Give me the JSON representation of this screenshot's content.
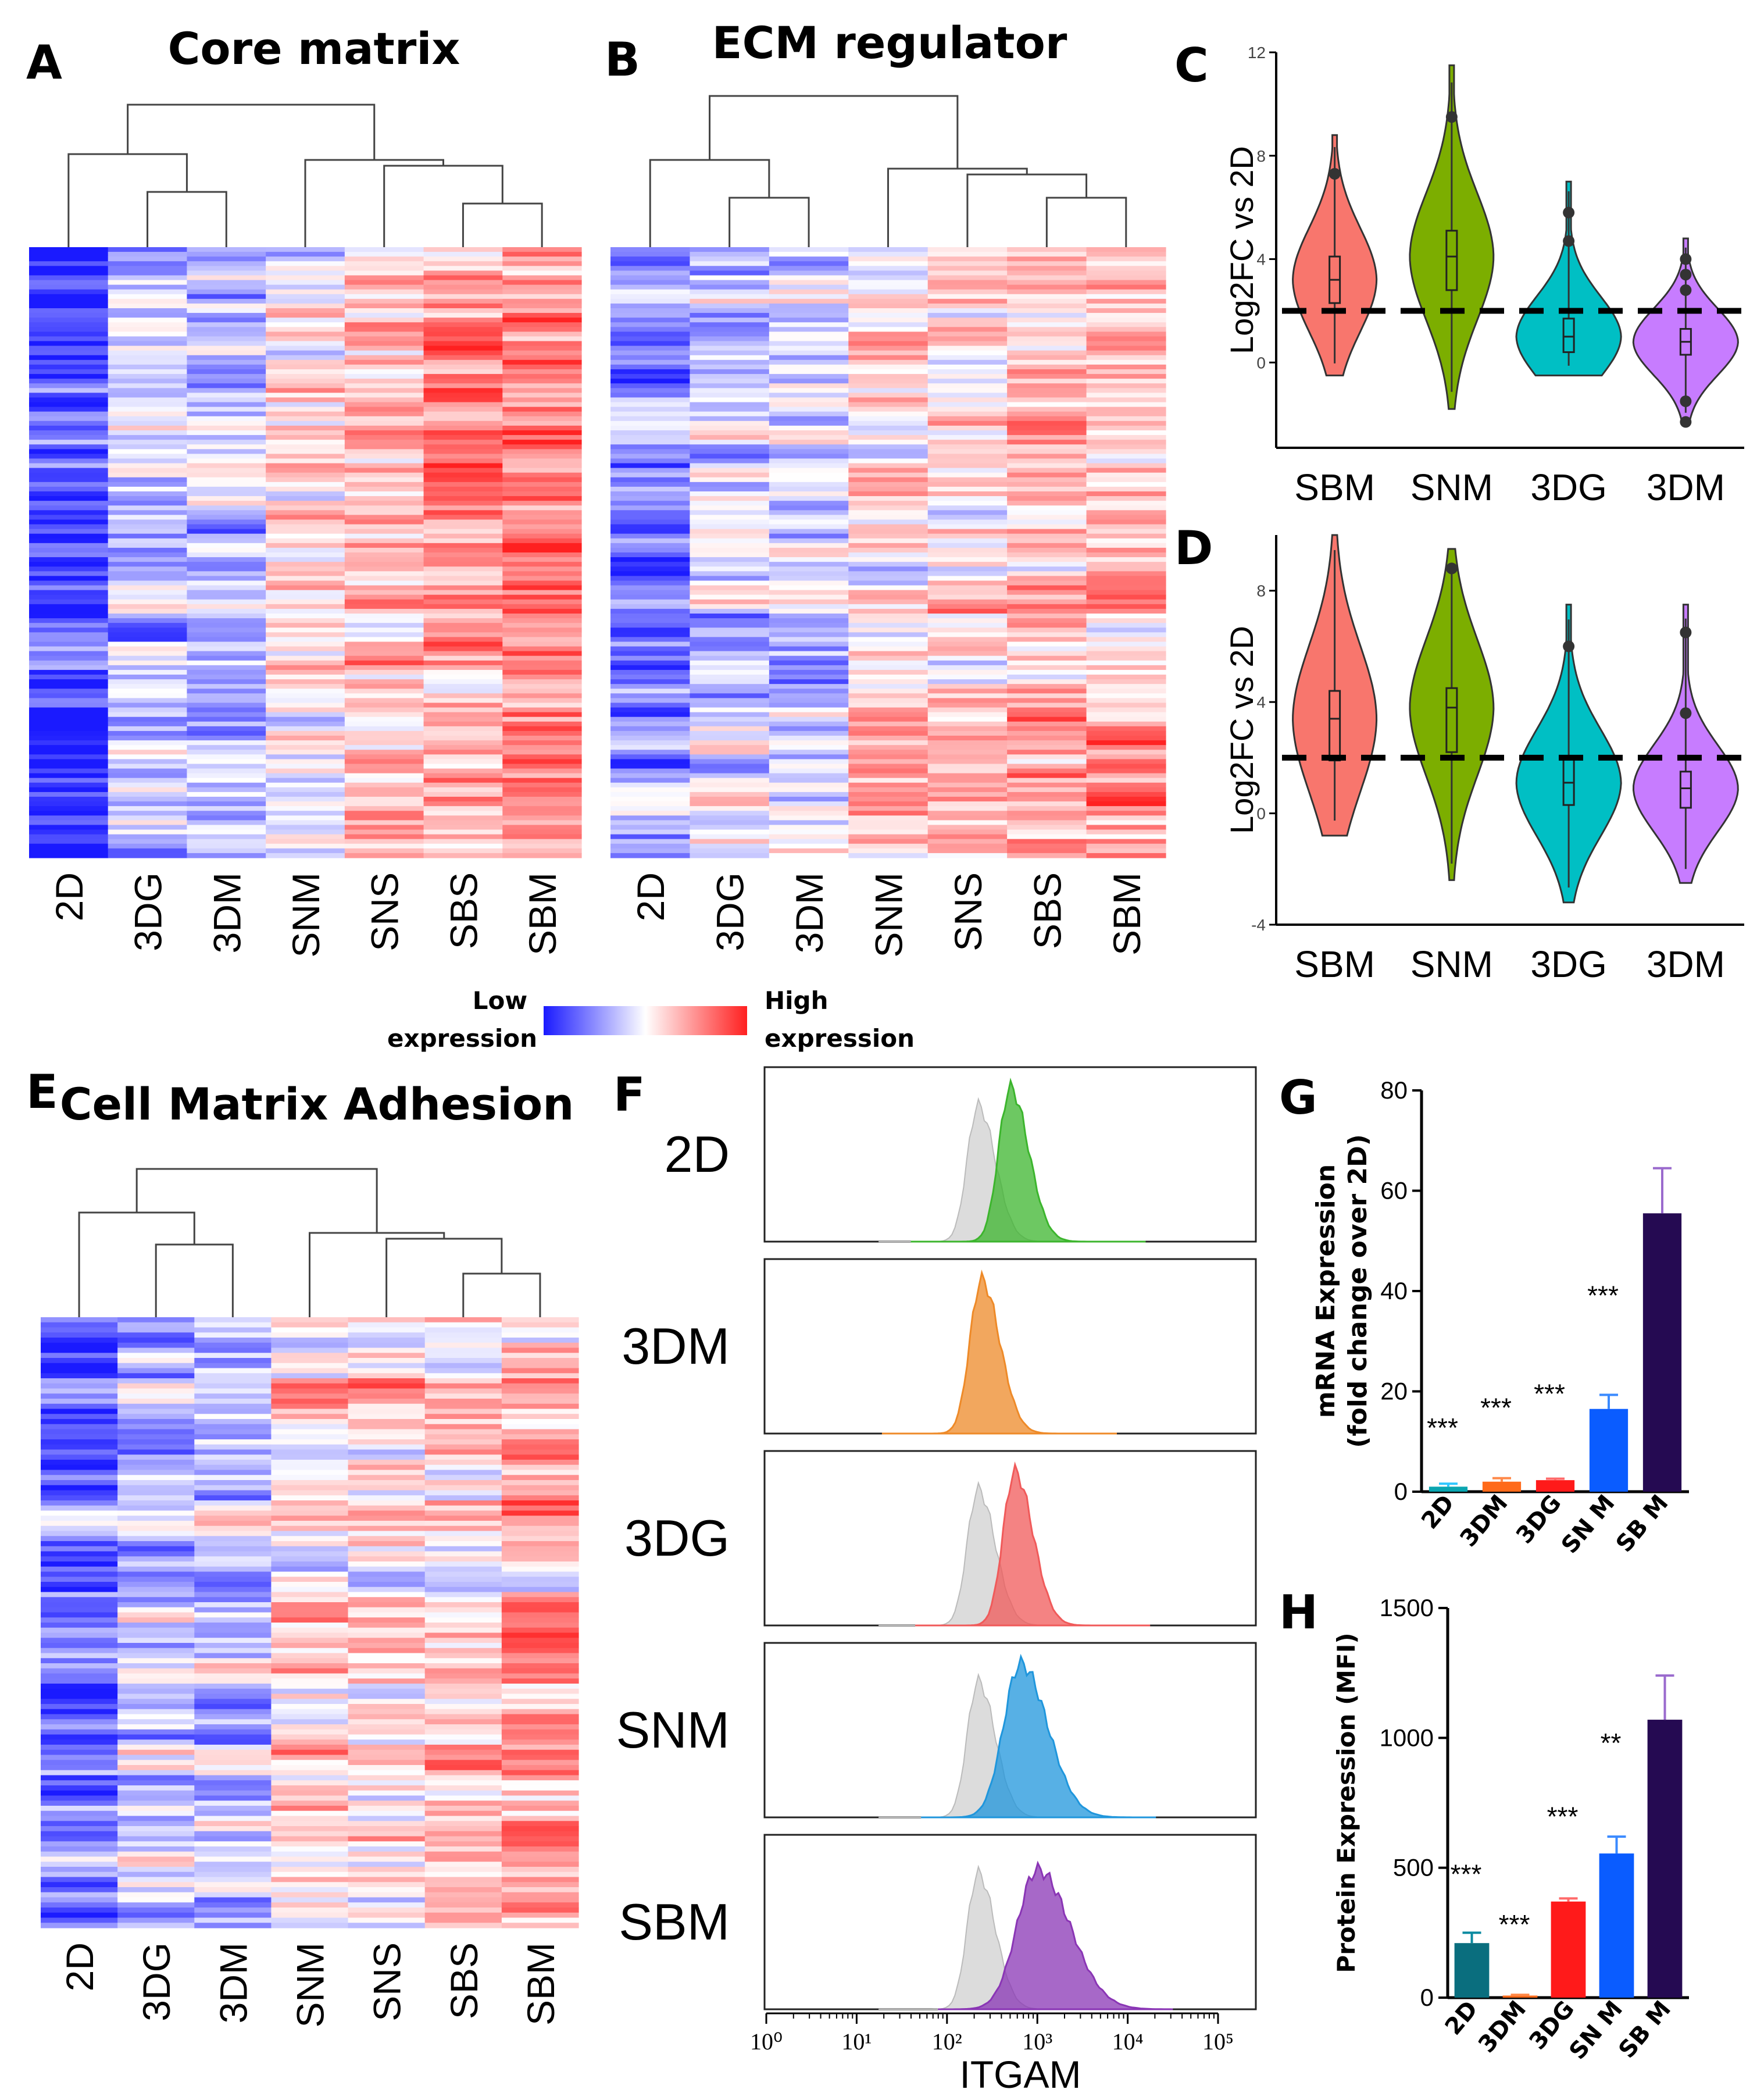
{
  "panels": {
    "A": {
      "letter": "A",
      "title": "Core matrix"
    },
    "B": {
      "letter": "B",
      "title": "ECM regulator"
    },
    "C": {
      "letter": "C"
    },
    "D": {
      "letter": "D"
    },
    "E": {
      "letter": "E",
      "title": "Cell Matrix Adhesion"
    },
    "F": {
      "letter": "F"
    },
    "G": {
      "letter": "G"
    },
    "H": {
      "letter": "H"
    }
  },
  "legend": {
    "low_line1": "Low",
    "low_line2": "expression",
    "high_line1": "High",
    "high_line2": "expression",
    "low_color": "#1a1aff",
    "mid_color": "#ffffff",
    "high_color": "#ff2020"
  },
  "chart_data": [
    {
      "id": "A",
      "type": "heatmap",
      "title": "Core matrix",
      "columns": [
        "2D",
        "3DG",
        "3DM",
        "SNM",
        "SNS",
        "SBS",
        "SBM"
      ],
      "color_scale": [
        "Low expression",
        "High expression"
      ],
      "column_means": [
        -0.85,
        -0.25,
        -0.3,
        0.05,
        0.3,
        0.45,
        0.6
      ],
      "rows_shown": 130,
      "seed": 11
    },
    {
      "id": "B",
      "type": "heatmap",
      "title": "ECM regulator",
      "columns": [
        "2D",
        "3DG",
        "3DM",
        "SNM",
        "SNS",
        "SBS",
        "SBM"
      ],
      "color_scale": [
        "Low expression",
        "High expression"
      ],
      "column_means": [
        -0.55,
        -0.15,
        -0.2,
        0.15,
        0.2,
        0.3,
        0.4
      ],
      "rows_shown": 130,
      "seed": 23
    },
    {
      "id": "C",
      "type": "violin",
      "categories": [
        "SBM",
        "SNM",
        "3DG",
        "3DM"
      ],
      "colors": [
        "#f8766d",
        "#7cae00",
        "#00bfc4",
        "#c77cff"
      ],
      "medians": [
        3.2,
        4.1,
        1.0,
        0.8
      ],
      "q1": [
        2.3,
        2.8,
        0.4,
        0.3
      ],
      "q3": [
        4.1,
        5.1,
        1.7,
        1.3
      ],
      "min": [
        -0.5,
        -1.8,
        -0.5,
        -2.3
      ],
      "max": [
        8.8,
        11.5,
        7.0,
        4.8
      ],
      "outliers": [
        [
          7.3
        ],
        [
          9.5
        ],
        [
          4.7,
          5.8
        ],
        [
          2.8,
          3.4,
          4.0,
          -1.5,
          -2.3
        ]
      ],
      "threshold": 2,
      "ylabel": "Log2FC vs 2D",
      "ylim": [
        -3.3,
        12
      ],
      "yticks": [
        0,
        4,
        8,
        12
      ]
    },
    {
      "id": "D",
      "type": "violin",
      "categories": [
        "SBM",
        "SNM",
        "3DG",
        "3DM"
      ],
      "colors": [
        "#f8766d",
        "#7cae00",
        "#00bfc4",
        "#c77cff"
      ],
      "medians": [
        3.4,
        3.8,
        1.1,
        0.9
      ],
      "q1": [
        1.9,
        2.2,
        0.3,
        0.2
      ],
      "q3": [
        4.4,
        4.5,
        2.0,
        1.5
      ],
      "min": [
        -0.8,
        -2.4,
        -3.2,
        -2.5
      ],
      "max": [
        10.0,
        9.5,
        7.5,
        7.5
      ],
      "outliers": [
        [],
        [
          8.8
        ],
        [
          6.0
        ],
        [
          3.6,
          6.5
        ]
      ],
      "threshold": 2,
      "ylabel": "Log2FC vs 2D",
      "ylim": [
        -4,
        10
      ],
      "yticks": [
        -4,
        0,
        4,
        8
      ]
    },
    {
      "id": "E",
      "type": "heatmap",
      "title": "Cell Matrix Adhesion",
      "columns": [
        "2D",
        "3DG",
        "3DM",
        "SNM",
        "SNS",
        "SBS",
        "SBM"
      ],
      "color_scale": [
        "Low expression",
        "High expression"
      ],
      "column_means": [
        -0.6,
        -0.25,
        -0.2,
        0.1,
        0.15,
        0.25,
        0.35
      ],
      "rows_shown": 120,
      "seed": 37
    },
    {
      "id": "F",
      "type": "histogram",
      "title": "",
      "xlabel": "ITGAM",
      "x_scale": "log10",
      "xticks": [
        "10⁰",
        "10¹",
        "10²",
        "10³",
        "10⁴",
        "10⁵"
      ],
      "isotype_peak": 220,
      "samples": [
        {
          "name": "2D",
          "peak": 500,
          "color": "#3cb52d",
          "control": true
        },
        {
          "name": "3DM",
          "peak": 240,
          "color": "#ee8a28",
          "control": false
        },
        {
          "name": "3DG",
          "peak": 560,
          "color": "#f05a5a",
          "control": true
        },
        {
          "name": "SNM",
          "peak": 650,
          "color": "#1f96dc",
          "control": true
        },
        {
          "name": "SBM",
          "peak": 1000,
          "color": "#8a35b5",
          "control": true
        }
      ]
    },
    {
      "id": "G",
      "type": "bar",
      "categories": [
        "2D",
        "3DM",
        "3DG",
        "SN M",
        "SB M"
      ],
      "values": [
        1,
        2,
        2.3,
        16.5,
        55.5
      ],
      "errors": [
        0.6,
        0.7,
        0.3,
        2.8,
        9.0
      ],
      "significance": [
        "***",
        "***",
        "***",
        "***",
        ""
      ],
      "colors": [
        "#0aa5b0",
        "#ff6a1a",
        "#ff1a1a",
        "#0a5cff",
        "#250a52"
      ],
      "error_colors": [
        "#2fc7ff",
        "#ff8a4a",
        "#ff6a6a",
        "#3a8aff",
        "#9a6acd"
      ],
      "ylabel_line1": "mRNA Expression",
      "ylabel_line2": "(fold change over 2D)",
      "ylim": [
        0,
        80
      ],
      "yticks": [
        0,
        20,
        40,
        60,
        80
      ]
    },
    {
      "id": "H",
      "type": "bar",
      "categories": [
        "2D",
        "3DM",
        "3DG",
        "SN M",
        "SB M"
      ],
      "values": [
        210,
        8,
        370,
        555,
        1070
      ],
      "errors": [
        40,
        3,
        12,
        65,
        170
      ],
      "significance": [
        "***",
        "***",
        "***",
        "**",
        ""
      ],
      "colors": [
        "#0a6e7e",
        "#ff6a1a",
        "#ff1a1a",
        "#0a5cff",
        "#250a52"
      ],
      "error_colors": [
        "#0a8aa0",
        "#ff8a4a",
        "#ff6a6a",
        "#3a8aff",
        "#9a6acd"
      ],
      "ylabel": "Protein Expression (MFI)",
      "ylim": [
        0,
        1500
      ],
      "yticks": [
        0,
        500,
        1000,
        1500
      ]
    }
  ]
}
